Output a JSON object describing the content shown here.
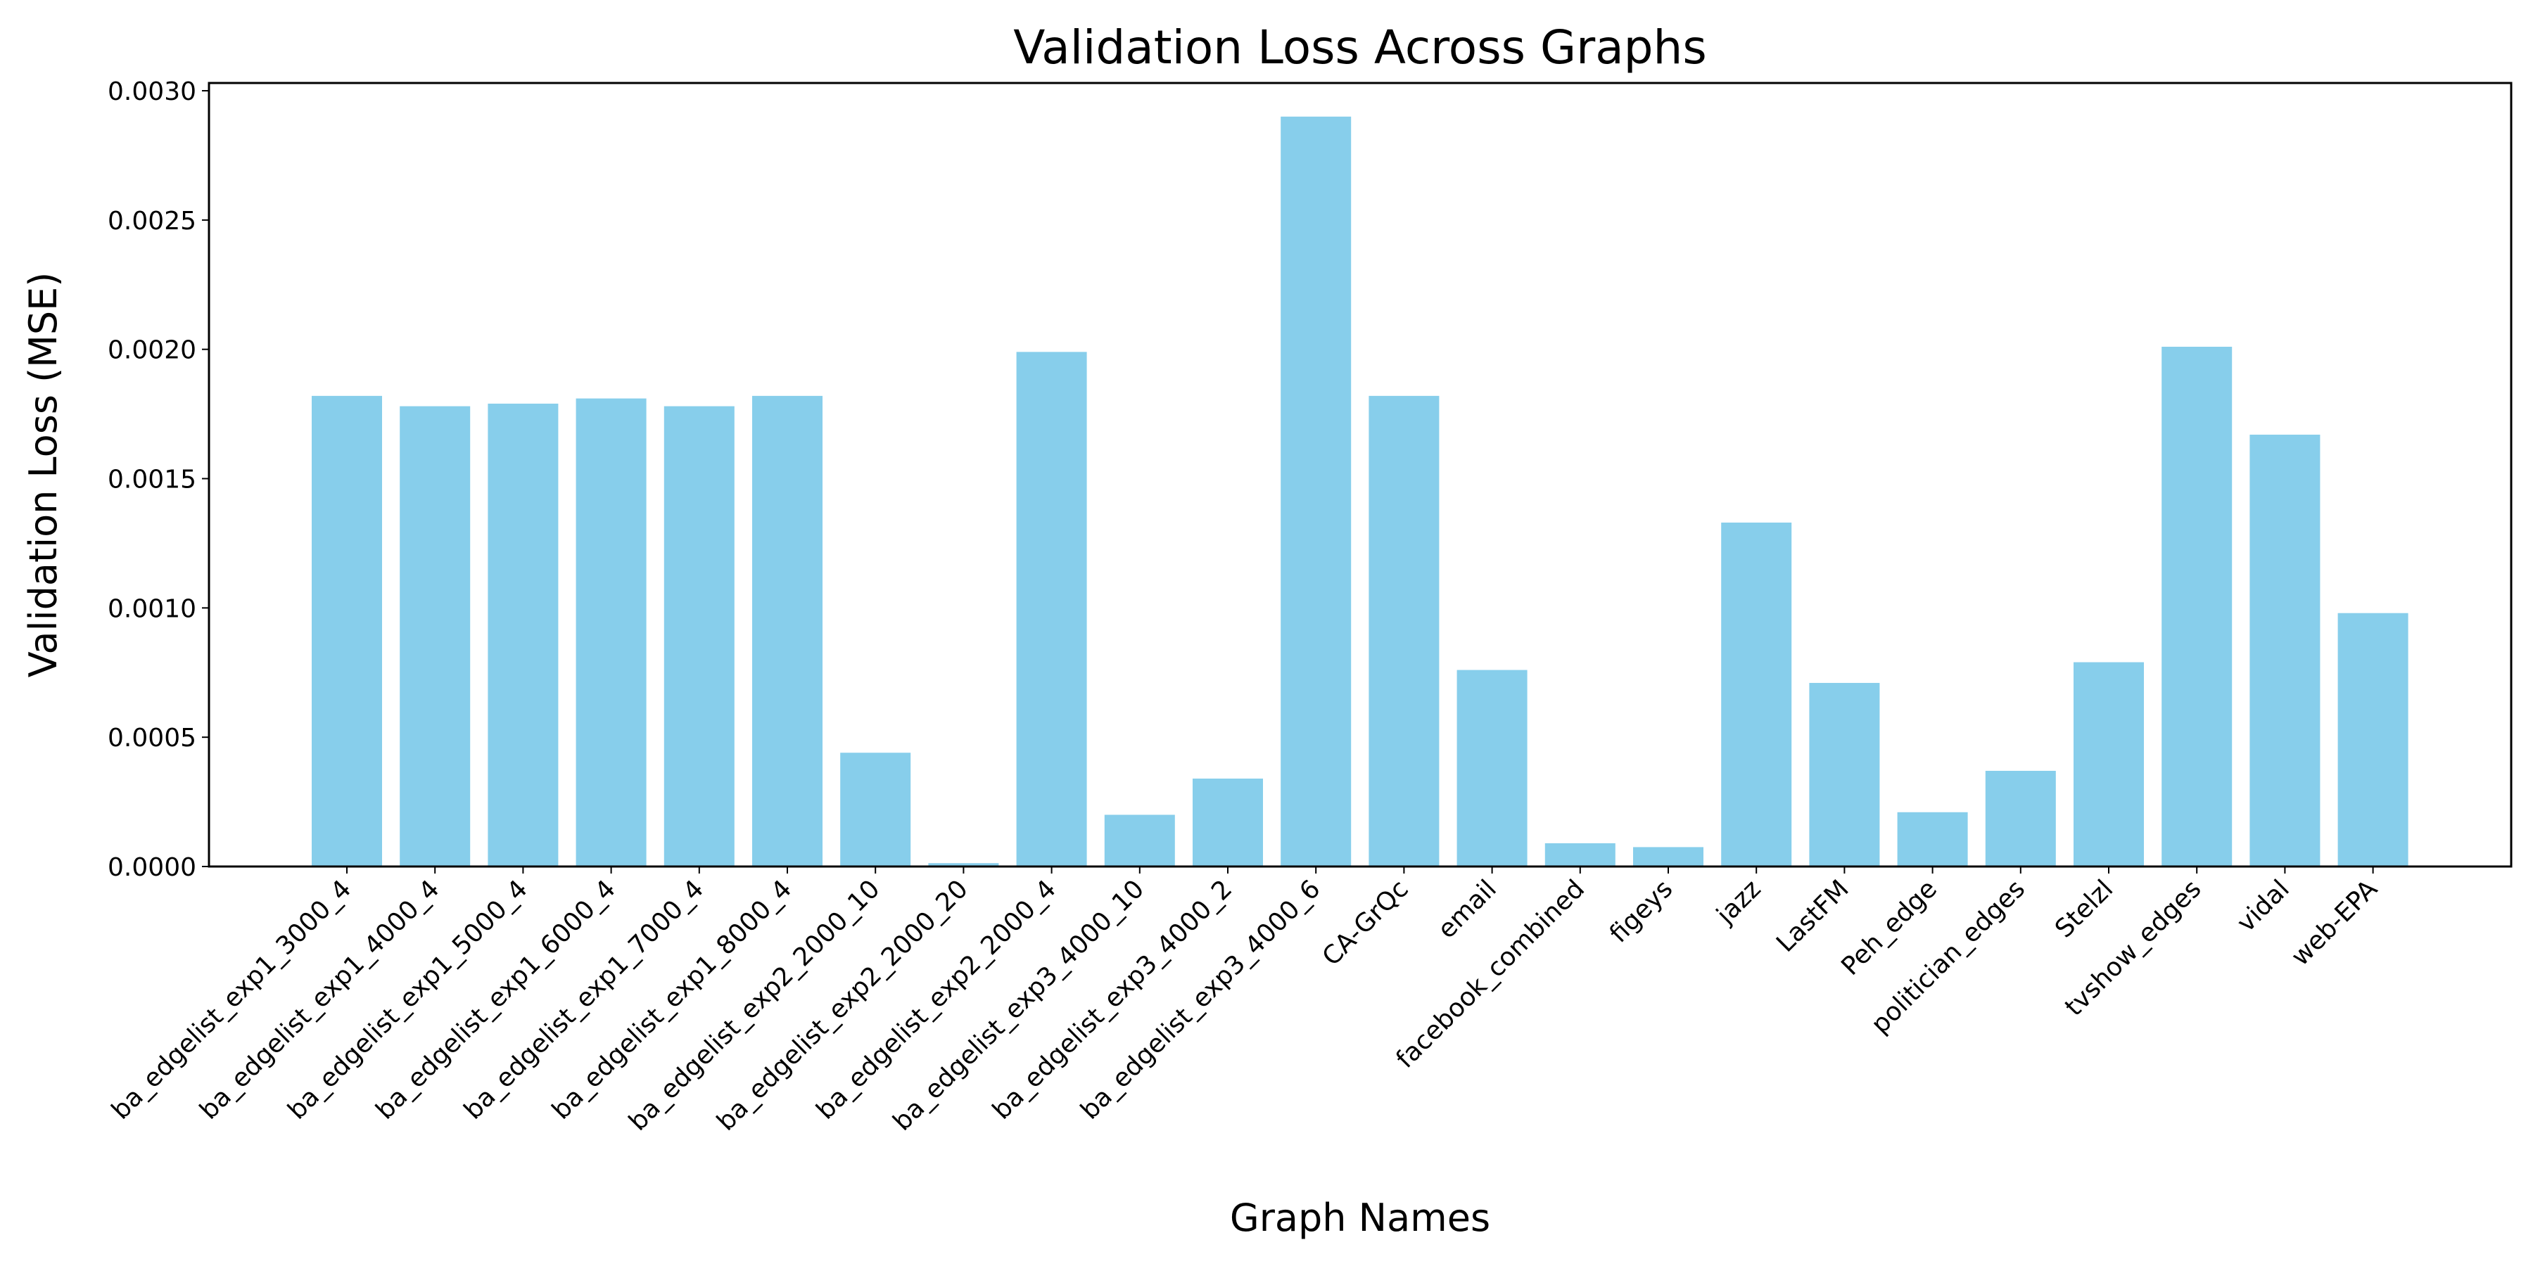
{
  "chart_data": {
    "type": "bar",
    "title": "Validation Loss Across Graphs",
    "xlabel": "Graph Names",
    "ylabel": "Validation Loss (MSE)",
    "ylim": [
      0,
      0.00303
    ],
    "yticks": [
      "0.0000",
      "0.0005",
      "0.0010",
      "0.0015",
      "0.0020",
      "0.0025",
      "0.0030"
    ],
    "ytick_values": [
      0,
      0.0005,
      0.001,
      0.0015,
      0.002,
      0.0025,
      0.003
    ],
    "bar_color": "#87CEEB",
    "grid": false,
    "categories": [
      "ba_edgelist_exp1_3000_4",
      "ba_edgelist_exp1_4000_4",
      "ba_edgelist_exp1_5000_4",
      "ba_edgelist_exp1_6000_4",
      "ba_edgelist_exp1_7000_4",
      "ba_edgelist_exp1_8000_4",
      "ba_edgelist_exp2_2000_10",
      "ba_edgelist_exp2_2000_20",
      "ba_edgelist_exp2_2000_4",
      "ba_edgelist_exp3_4000_10",
      "ba_edgelist_exp3_4000_2",
      "ba_edgelist_exp3_4000_6",
      "CA-GrQc",
      "email",
      "facebook_combined",
      "figeys",
      "jazz",
      "LastFM",
      "Peh_edge",
      "politician_edges",
      "Stelzl",
      "tvshow_edges",
      "vidal",
      "web-EPA"
    ],
    "values": [
      0.00182,
      0.00178,
      0.00179,
      0.00181,
      0.00178,
      0.00182,
      0.00044,
      1.3e-05,
      0.00199,
      0.0002,
      0.00034,
      0.0029,
      0.00182,
      0.00076,
      9e-05,
      7.5e-05,
      0.00133,
      0.00071,
      0.00021,
      0.00037,
      0.00079,
      0.00201,
      0.00167,
      0.00098
    ]
  }
}
